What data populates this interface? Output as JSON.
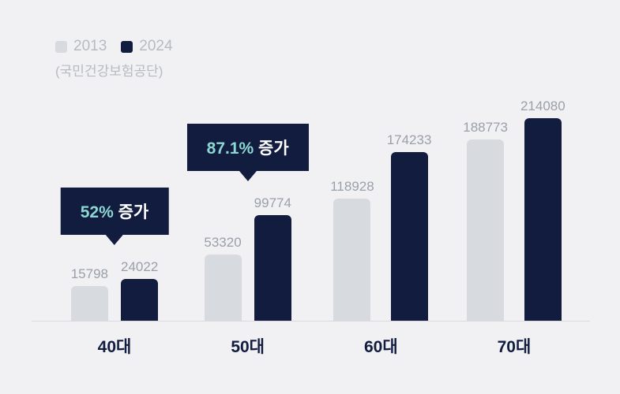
{
  "chart_data": {
    "type": "bar",
    "title": "",
    "xlabel": "",
    "ylabel": "",
    "categories": [
      "40대",
      "50대",
      "60대",
      "70대"
    ],
    "series": [
      {
        "name": "2013",
        "values": [
          15798,
          53320,
          118928,
          188773
        ],
        "color": "#d7dbe0"
      },
      {
        "name": "2024",
        "values": [
          24022,
          99774,
          174233,
          214080
        ],
        "color": "#111c3f"
      }
    ],
    "annotations": [
      {
        "category_index": 0,
        "percent": "52%",
        "label": "증가"
      },
      {
        "category_index": 1,
        "percent": "87.1%",
        "label": "증가"
      }
    ],
    "source": "(국민건강보험공단)",
    "legend_position": "top-left",
    "ylim": [
      0,
      214080
    ],
    "grid": false
  },
  "colors": {
    "background": "#f1f1f4",
    "bar_2013": "#d7dbe0",
    "bar_2024": "#111c3f",
    "value_label": "#9aa0a9",
    "category_label": "#111c3f",
    "legend_text": "#b6bac2",
    "callout_bg": "#111c3f",
    "callout_percent": "#8bd7d2",
    "callout_text": "#ffffff",
    "baseline": "#d9d9de"
  }
}
